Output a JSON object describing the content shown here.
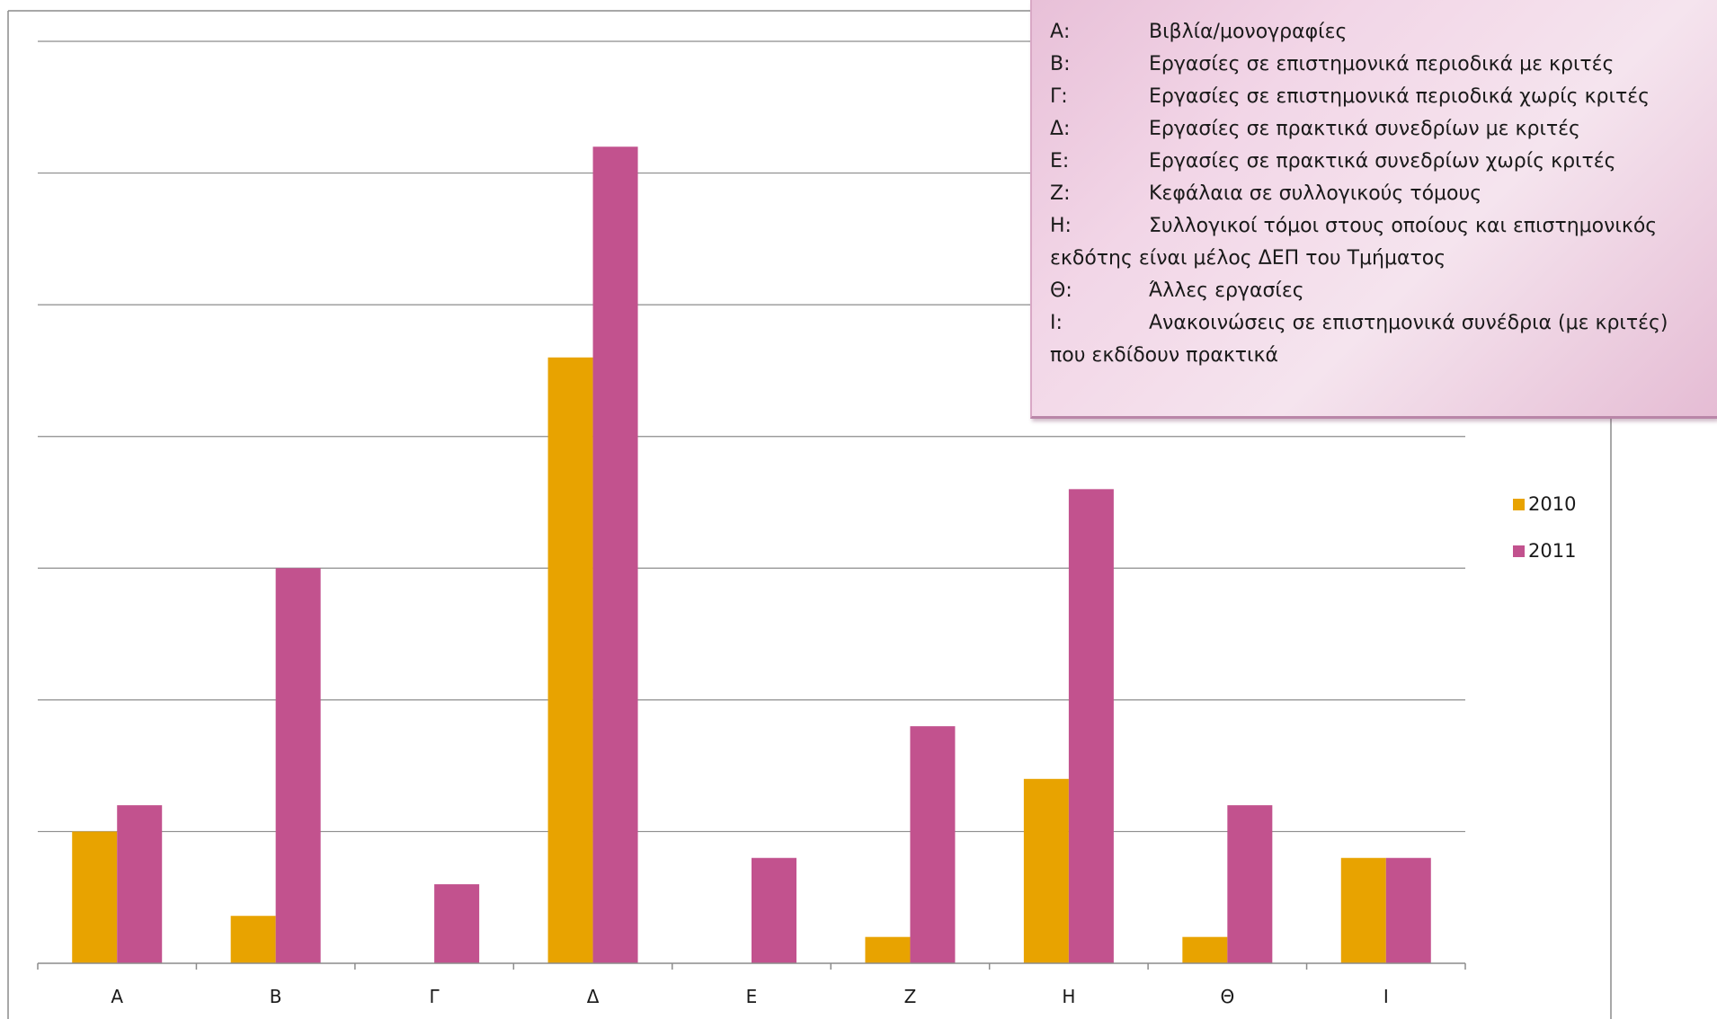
{
  "chart_data": {
    "type": "bar",
    "categories": [
      "Α",
      "Β",
      "Γ",
      "Δ",
      "Ε",
      "Ζ",
      "Η",
      "Θ",
      "Ι"
    ],
    "series": [
      {
        "name": "2010",
        "color": "#e8a300",
        "values": [
          5,
          1.8,
          0,
          23,
          0,
          1,
          7,
          1,
          4
        ]
      },
      {
        "name": "2011",
        "color": "#c2528e",
        "values": [
          6,
          15,
          3,
          31,
          4,
          9,
          18,
          6,
          4
        ]
      }
    ],
    "ylim": [
      0,
      35
    ],
    "ytick_step": 5,
    "grid": true,
    "title": "",
    "xlabel": "",
    "ylabel": "",
    "legend_placement": "right"
  },
  "category_legend": {
    "lines": [
      {
        "key": "Α:",
        "text": "Βιβλία/μονογραφίες"
      },
      {
        "key": "Β:",
        "text": "Εργασίες σε επιστημονικά περιοδικά με κριτές"
      },
      {
        "key": "Γ:",
        "text": "Εργασίες σε επιστημονικά περιοδικά χωρίς κριτές"
      },
      {
        "key": "Δ:",
        "text": "Εργασίες σε πρακτικά συνεδρίων με κριτές"
      },
      {
        "key": "Ε:",
        "text": "Εργασίες σε πρακτικά συνεδρίων χωρίς κριτές"
      },
      {
        "key": "Ζ:",
        "text": "Κεφάλαια σε συλλογικούς τόμους"
      },
      {
        "key": "Η:",
        "text": "Συλλογικοί τόμοι στους οποίους και επιστημονικός"
      },
      {
        "key": "",
        "text": "εκδότης είναι μέλος ΔΕΠ του Τμήματος"
      },
      {
        "key": "Θ:",
        "text": "Άλλες εργασίες"
      },
      {
        "key": "Ι:",
        "text": "Ανακοινώσεις σε επιστημονικά συνέδρια (με κριτές)"
      },
      {
        "key": "",
        "text": "που εκδίδουν πρακτικά"
      }
    ]
  },
  "colors": {
    "grid": "#8c8c8c",
    "axis": "#8c8c8c",
    "frame": "#8c8c8c"
  }
}
